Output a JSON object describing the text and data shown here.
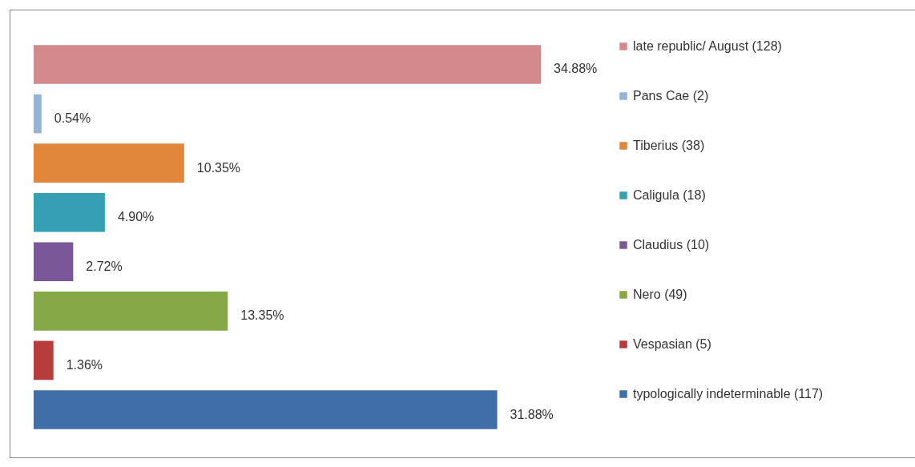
{
  "chart_data": {
    "type": "bar",
    "orientation": "horizontal",
    "categories": [
      "late republic/ August (128)",
      "Pans Cae (2)",
      "Tiberius (38)",
      "Caligula (18)",
      "Claudius (10)",
      "Nero (49)",
      "Vespasian (5)",
      "typologically indeterminable (117)"
    ],
    "values": [
      34.88,
      0.54,
      10.35,
      4.9,
      2.72,
      13.35,
      1.36,
      31.88
    ],
    "colors": [
      "#d48a8c",
      "#95b3d7",
      "#e0873c",
      "#379fb5",
      "#7a5799",
      "#87a847",
      "#b73d3d",
      "#3f6ea8"
    ],
    "value_labels": [
      "34.88%",
      "0.54%",
      "10.35%",
      "4.90%",
      "2.72%",
      "13.35%",
      "1.36%",
      "31.88%"
    ]
  }
}
